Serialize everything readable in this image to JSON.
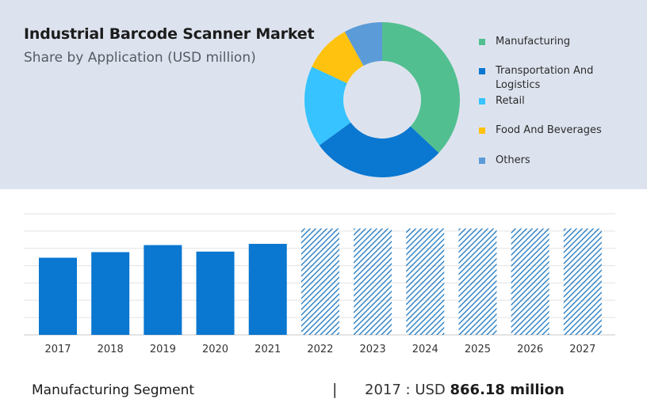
{
  "header": {
    "title": "Industrial Barcode Scanner Market",
    "subtitle": "Share by Application (USD million)"
  },
  "footer": {
    "segment": "Manufacturing Segment",
    "separator": "|",
    "year_prefix": "2017 : USD ",
    "value_text": "866.18 million"
  },
  "chart_data": [
    {
      "type": "pie",
      "donut": true,
      "title": "Share by Application (USD million)",
      "legend_position": "right",
      "slices": [
        {
          "label": "Manufacturing",
          "value": 37,
          "color": "#52bf90"
        },
        {
          "label": "Transportation And Logistics",
          "value": 28,
          "color": "#0a77d0"
        },
        {
          "label": "Retail",
          "value": 17,
          "color": "#36c3ff"
        },
        {
          "label": "Food And Beverages",
          "value": 10,
          "color": "#ffc20e"
        },
        {
          "label": "Others",
          "value": 8,
          "color": "#5b9bd8"
        }
      ]
    },
    {
      "type": "bar",
      "categories": [
        "2017",
        "2018",
        "2019",
        "2020",
        "2021",
        "2022",
        "2023",
        "2024",
        "2025",
        "2026",
        "2027"
      ],
      "values": [
        866.18,
        929,
        1008,
        935,
        1022,
        1195,
        1195,
        1195,
        1195,
        1195,
        1195
      ],
      "forecast_from_index": 5,
      "actual_color": "#0a77d0",
      "forecast_color": "#2a7fc4",
      "ylim": [
        0,
        1360
      ],
      "grid": true
    }
  ]
}
